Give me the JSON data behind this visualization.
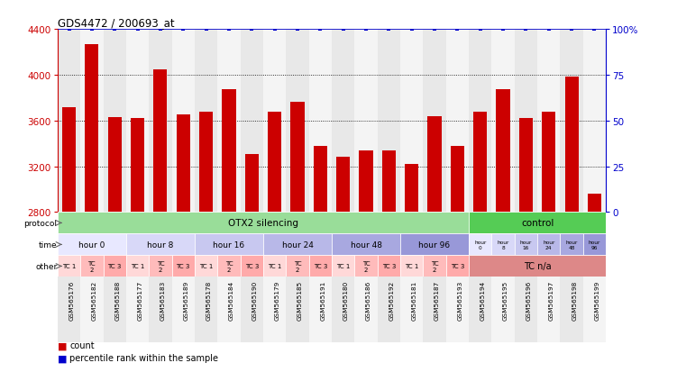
{
  "title": "GDS4472 / 200693_at",
  "samples": [
    "GSM565176",
    "GSM565182",
    "GSM565188",
    "GSM565177",
    "GSM565183",
    "GSM565189",
    "GSM565178",
    "GSM565184",
    "GSM565190",
    "GSM565179",
    "GSM565185",
    "GSM565191",
    "GSM565180",
    "GSM565186",
    "GSM565192",
    "GSM565181",
    "GSM565187",
    "GSM565193",
    "GSM565194",
    "GSM565195",
    "GSM565196",
    "GSM565197",
    "GSM565198",
    "GSM565199"
  ],
  "values": [
    3720,
    4270,
    3630,
    3620,
    4050,
    3650,
    3680,
    3870,
    3310,
    3680,
    3760,
    3380,
    3280,
    3340,
    3340,
    3220,
    3640,
    3380,
    3680,
    3870,
    3620,
    3680,
    3980,
    2960
  ],
  "percentile": [
    100,
    100,
    100,
    100,
    100,
    100,
    100,
    100,
    100,
    100,
    100,
    100,
    100,
    100,
    100,
    100,
    100,
    100,
    100,
    100,
    100,
    100,
    100,
    100
  ],
  "ylim_left": [
    2800,
    4400
  ],
  "ylim_right": [
    0,
    100
  ],
  "yticks_left": [
    2800,
    3200,
    3600,
    4000,
    4400
  ],
  "yticks_right": [
    0,
    25,
    50,
    75,
    100
  ],
  "bar_color": "#cc0000",
  "dot_color": "#0000cc",
  "grid_color": "#000000",
  "protocol_otx2_label": "OTX2 silencing",
  "protocol_control_label": "control",
  "protocol_otx2_color": "#99dd99",
  "protocol_control_color": "#55cc55",
  "time_colors_otx2": [
    "#e8e8ff",
    "#d8d8f8",
    "#c8c8f0",
    "#b8b8e8",
    "#a8a8e0",
    "#9898d8"
  ],
  "time_labels": [
    "hour 0",
    "hour 8",
    "hour 16",
    "hour 24",
    "hour 48",
    "hour 96"
  ],
  "ctrl_time_colors": [
    "#e8e8ff",
    "#d8d8f8",
    "#c8c8f0",
    "#b8b8e8",
    "#a8a8e0",
    "#9898d8"
  ],
  "ctrl_time_labels_short": [
    "hour\n0",
    "hour\n8",
    "hour\n16",
    "hour\n24",
    "hour\n48",
    "hour\n96"
  ],
  "tc_colors": [
    "#ffd8d8",
    "#ffbbbb",
    "#ffaaaa"
  ],
  "tc_labels": [
    "TC 1",
    "TC\n2",
    "TC 3"
  ],
  "other_tca_label": "TC n/a",
  "other_tca_color": "#dd8888",
  "legend_count_color": "#cc0000",
  "legend_pct_color": "#0000cc",
  "bg_col_even": "#e8e8e8",
  "bg_col_odd": "#f4f4f4",
  "n_otx2": 18,
  "n_ctrl": 6
}
